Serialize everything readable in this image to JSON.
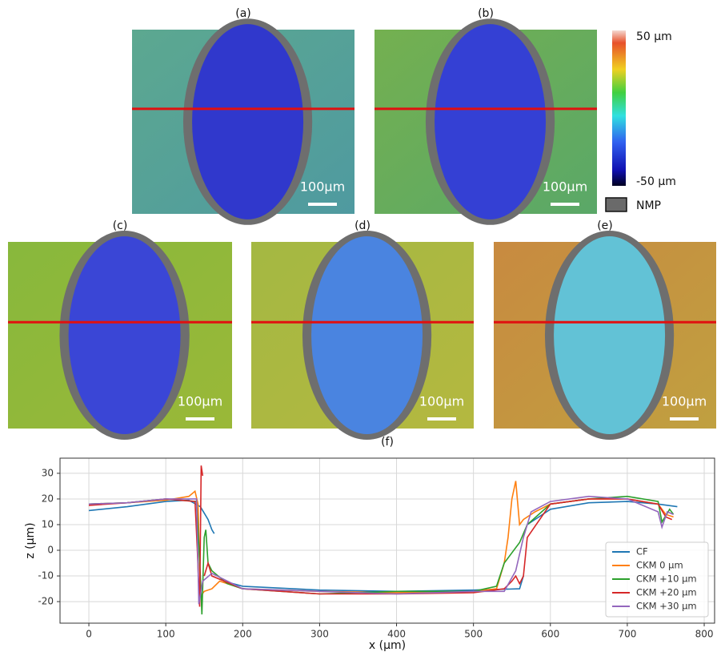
{
  "panels": [
    {
      "label": "(a)",
      "scale_label": "100µm"
    },
    {
      "label": "(b)",
      "scale_label": "100µm"
    },
    {
      "label": "(c)",
      "scale_label": "100µm"
    },
    {
      "label": "(d)",
      "scale_label": "100µm"
    },
    {
      "label": "(e)",
      "scale_label": "100µm"
    }
  ],
  "colorbar": {
    "max_label": "50 µm",
    "min_label": "-50 µm",
    "nmp_label": "NMP"
  },
  "chart_data": {
    "type": "line",
    "title": "(f)",
    "x_label": "x (µm)",
    "y_label": "z (µm)",
    "xlim": [
      -37.5,
      813.5
    ],
    "ylim": [
      -28.4,
      35.9
    ],
    "xticks": [
      0,
      100,
      200,
      300,
      400,
      500,
      600,
      700,
      800
    ],
    "yticks": [
      -20,
      -10,
      0,
      10,
      20,
      30
    ],
    "grid": true,
    "legend": "lower right",
    "series": [
      {
        "name": "CF",
        "color": "#1f77b4",
        "x": [
          0,
          50,
          100,
          130,
          145,
          155,
          160,
          163,
          170,
          175,
          200,
          300,
          400,
          500,
          560,
          565,
          568,
          570,
          600,
          650,
          700,
          740,
          765
        ],
        "values": [
          15.5,
          17,
          19,
          19.5,
          17,
          12,
          8,
          6.5,
          null,
          -12,
          -14,
          -15.5,
          -16,
          -15.5,
          -15,
          -10,
          null,
          10,
          16,
          18.5,
          19,
          18,
          17
        ]
      },
      {
        "name": "CKM 0 µm",
        "color": "#ff7f0e",
        "x": [
          0,
          50,
          100,
          130,
          138,
          142,
          145,
          150,
          160,
          170,
          200,
          300,
          400,
          500,
          530,
          540,
          545,
          550,
          555,
          560,
          565,
          580,
          600,
          650,
          700,
          740,
          750,
          760
        ],
        "values": [
          18,
          18.5,
          19.5,
          21,
          23,
          18,
          -18,
          -16,
          -15,
          -12,
          -15,
          -16,
          -16.5,
          -16,
          -15,
          -5,
          5,
          20,
          27,
          10,
          12,
          15,
          18,
          20,
          20,
          18,
          14,
          13
        ]
      },
      {
        "name": "CKM +10 µm",
        "color": "#2ca02c",
        "x": [
          0,
          50,
          100,
          140,
          145,
          147,
          150,
          152,
          155,
          160,
          180,
          200,
          300,
          400,
          500,
          530,
          540,
          560,
          570,
          600,
          650,
          700,
          740,
          745,
          755,
          760
        ],
        "values": [
          18,
          18.5,
          20,
          19,
          -10,
          -25,
          5,
          8,
          -5,
          -8,
          -13,
          -15,
          -17,
          -16,
          -16,
          -14,
          -5,
          3,
          10,
          18,
          20,
          21,
          19,
          11,
          16,
          14
        ]
      },
      {
        "name": "CKM +20 µm",
        "color": "#d62728",
        "x": [
          0,
          50,
          100,
          138,
          141,
          144,
          146,
          148,
          149,
          150,
          155,
          160,
          200,
          300,
          400,
          500,
          540,
          550,
          555,
          560,
          565,
          570,
          600,
          650,
          700,
          740,
          750,
          758
        ],
        "values": [
          17.5,
          18.5,
          20,
          19,
          0,
          -22,
          33,
          29,
          null,
          -10,
          -5,
          -10,
          -15,
          -17,
          -17,
          -16.5,
          -15,
          -12,
          -10,
          -13,
          -10,
          5,
          18,
          20,
          20,
          18,
          13,
          12
        ]
      },
      {
        "name": "CKM +30 µm",
        "color": "#9467bd",
        "x": [
          0,
          50,
          100,
          140,
          143,
          148,
          160,
          200,
          300,
          400,
          500,
          540,
          555,
          565,
          575,
          600,
          650,
          700,
          740,
          745,
          752,
          760
        ],
        "values": [
          18,
          18.5,
          20,
          20,
          -21,
          -12,
          -9,
          -15,
          -16,
          -17,
          -16,
          -16,
          -8,
          5,
          15,
          19,
          21,
          20,
          15,
          9,
          15,
          14
        ]
      }
    ]
  }
}
